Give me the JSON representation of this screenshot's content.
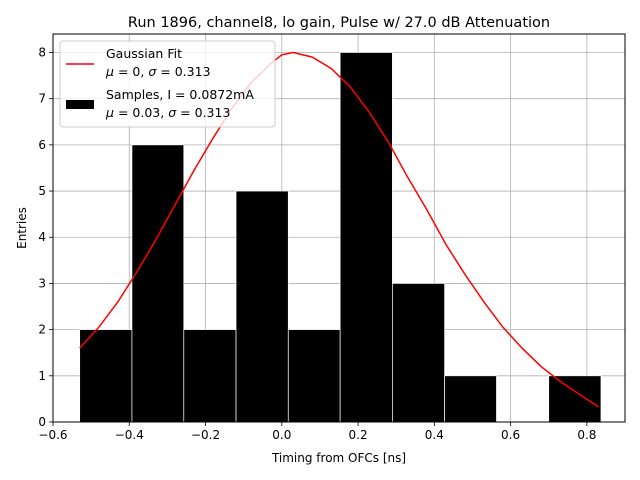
{
  "chart_data": {
    "type": "bar",
    "title": "Run 1896, channel8, lo gain, Pulse w/ 27.0 dB Attenuation",
    "xlabel": "Timing from OFCs [ns]",
    "ylabel": "Entries",
    "xlim": [
      -0.6,
      0.9
    ],
    "ylim": [
      0,
      8.4
    ],
    "xticks": [
      -0.6,
      -0.4,
      -0.2,
      0.0,
      0.2,
      0.4,
      0.6,
      0.8
    ],
    "xtick_labels": [
      "−0.6",
      "−0.4",
      "−0.2",
      "0.0",
      "0.2",
      "0.4",
      "0.6",
      "0.8"
    ],
    "yticks": [
      0,
      1,
      2,
      3,
      4,
      5,
      6,
      7,
      8
    ],
    "ytick_labels": [
      "0",
      "1",
      "2",
      "3",
      "4",
      "5",
      "6",
      "7",
      "8"
    ],
    "grid": true,
    "legend_position": "top-left",
    "histogram": {
      "name": "Samples, I = 0.0872mA",
      "stats": "μ = 0.03, σ = 0.313",
      "color": "#000000",
      "bin_edges": [
        -0.53,
        -0.393,
        -0.257,
        -0.12,
        0.017,
        0.153,
        0.29,
        0.427,
        0.563,
        0.7,
        0.837
      ],
      "counts": [
        2,
        6,
        2,
        5,
        2,
        8,
        3,
        1,
        0,
        1
      ]
    },
    "fit": {
      "name": "Gaussian Fit",
      "stats": "μ = 0, σ = 0.313",
      "color": "#ff0000",
      "x": [
        -0.53,
        -0.48,
        -0.43,
        -0.38,
        -0.33,
        -0.28,
        -0.23,
        -0.18,
        -0.13,
        -0.08,
        -0.03,
        0.0,
        0.03,
        0.08,
        0.13,
        0.18,
        0.23,
        0.28,
        0.33,
        0.38,
        0.43,
        0.48,
        0.53,
        0.58,
        0.63,
        0.68,
        0.73,
        0.78,
        0.83
      ],
      "y": [
        1.6,
        2.05,
        2.6,
        3.25,
        3.95,
        4.7,
        5.45,
        6.15,
        6.8,
        7.35,
        7.75,
        7.95,
        8.0,
        7.9,
        7.65,
        7.25,
        6.7,
        6.05,
        5.3,
        4.6,
        3.85,
        3.2,
        2.6,
        2.05,
        1.6,
        1.2,
        0.88,
        0.6,
        0.33
      ]
    }
  }
}
